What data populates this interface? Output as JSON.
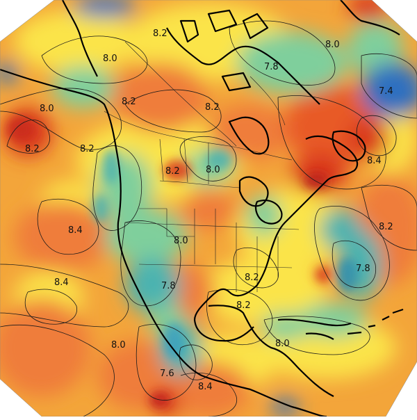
{
  "map": {
    "contour_labels": [
      {
        "id": "l1",
        "text": "8.2"
      },
      {
        "id": "l2",
        "text": "8.0"
      },
      {
        "id": "l3",
        "text": "8.0"
      },
      {
        "id": "l4",
        "text": "7.8"
      },
      {
        "id": "l5",
        "text": "7.4"
      },
      {
        "id": "l6",
        "text": "8.0"
      },
      {
        "id": "l7",
        "text": "8.2"
      },
      {
        "id": "l8",
        "text": "8.2"
      },
      {
        "id": "l9",
        "text": "8.2"
      },
      {
        "id": "l10",
        "text": "8.2"
      },
      {
        "id": "l11",
        "text": "8.2"
      },
      {
        "id": "l12",
        "text": "8.0"
      },
      {
        "id": "l13",
        "text": "8.4"
      },
      {
        "id": "l14",
        "text": "8.4"
      },
      {
        "id": "l15",
        "text": "8.2"
      },
      {
        "id": "l16",
        "text": "8.4"
      },
      {
        "id": "l17",
        "text": "8.0"
      },
      {
        "id": "l18",
        "text": "7.8"
      },
      {
        "id": "l19",
        "text": "7.8"
      },
      {
        "id": "l20",
        "text": "8.2"
      },
      {
        "id": "l21",
        "text": "8.2"
      },
      {
        "id": "l22",
        "text": "8.0"
      },
      {
        "id": "l23",
        "text": "8.0"
      },
      {
        "id": "l24",
        "text": "7.6"
      },
      {
        "id": "l25",
        "text": "8.4"
      }
    ],
    "colors": {
      "red": "#d9391f",
      "orange": "#ef7d3a",
      "yellow": "#fbe44a",
      "light_yellow": "#fdf5a0",
      "green": "#7fcf9c",
      "teal": "#4bb3b0",
      "blue": "#2f6fc0",
      "contour": "#1a1a1a",
      "coast": "#000000"
    }
  }
}
